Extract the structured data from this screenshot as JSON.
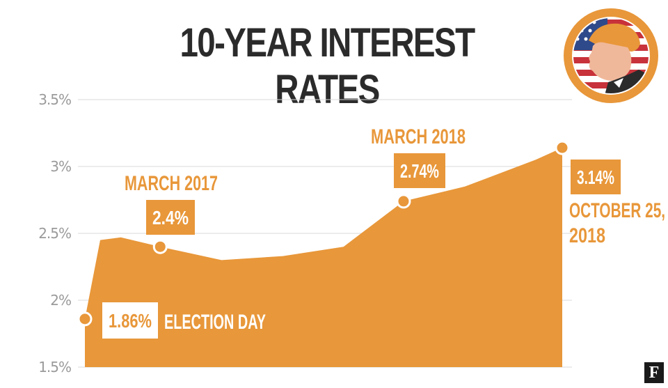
{
  "title": "10-YEAR INTEREST RATES",
  "colors": {
    "area": "#e8973a",
    "title": "#2b2b2b",
    "grid": "#d9d9d9",
    "tick": "#9a9a9a",
    "badge_ring": "#e8973a"
  },
  "logo": "F",
  "chart_data": {
    "type": "area",
    "title": "10-YEAR INTEREST RATES",
    "xlabel": "",
    "ylabel": "",
    "ylim": [
      1.5,
      3.5
    ],
    "yticks": [
      "1.5%",
      "2%",
      "2.5%",
      "3%",
      "3.5%"
    ],
    "grid": true,
    "series": [
      {
        "values": [
          {
            "x": "2016-11-08",
            "y": 1.86
          },
          {
            "x": "2016-12-01",
            "y": 2.45
          },
          {
            "x": "2017-01-01",
            "y": 2.47
          },
          {
            "x": "2017-03-01",
            "y": 2.4
          },
          {
            "x": "2017-06-01",
            "y": 2.3
          },
          {
            "x": "2017-09-01",
            "y": 2.33
          },
          {
            "x": "2017-12-01",
            "y": 2.4
          },
          {
            "x": "2018-03-01",
            "y": 2.74
          },
          {
            "x": "2018-06-01",
            "y": 2.85
          },
          {
            "x": "2018-09-15",
            "y": 3.05
          },
          {
            "x": "2018-10-25",
            "y": 3.14
          }
        ]
      }
    ],
    "annotations": [
      {
        "x": "2016-11-08",
        "y": 1.86,
        "value": "1.86%",
        "label": "ELECTION DAY"
      },
      {
        "x": "2017-03-01",
        "y": 2.4,
        "value": "2.4%",
        "label": "MARCH 2017"
      },
      {
        "x": "2018-03-01",
        "y": 2.74,
        "value": "2.74%",
        "label": "MARCH 2018"
      },
      {
        "x": "2018-10-25",
        "y": 3.14,
        "value": "3.14%",
        "label": "OCTOBER 25, 2018"
      }
    ]
  }
}
